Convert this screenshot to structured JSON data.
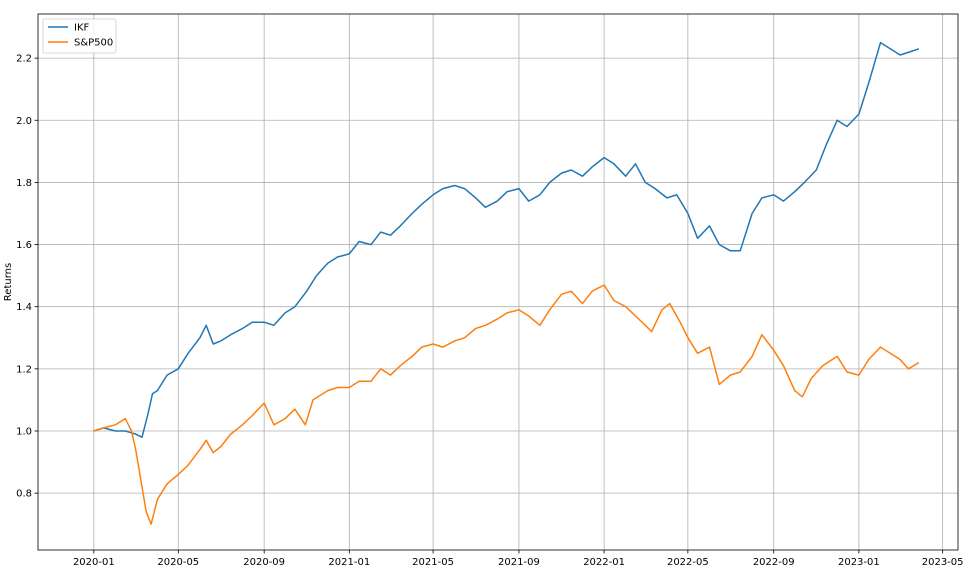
{
  "chart_data": {
    "type": "line",
    "title": "",
    "xlabel": "",
    "ylabel": "Returns",
    "grid": true,
    "legend": "top-left",
    "x_ticks": [
      "2020-01",
      "2020-05",
      "2020-09",
      "2021-01",
      "2021-05",
      "2021-09",
      "2022-01",
      "2022-05",
      "2022-09",
      "2023-01",
      "2023-05"
    ],
    "y_ticks": [
      0.8,
      1.0,
      1.2,
      1.4,
      1.6,
      1.8,
      2.0,
      2.2
    ],
    "xlim": [
      "2019-10-13",
      "2023-05-23"
    ],
    "ylim": [
      0.617,
      2.342
    ],
    "series": [
      {
        "name": "IKF",
        "color": "#1f77b4",
        "points": [
          [
            "2020-01-01",
            1.0
          ],
          [
            "2020-01-15",
            1.01
          ],
          [
            "2020-02-01",
            1.0
          ],
          [
            "2020-02-15",
            1.0
          ],
          [
            "2020-03-01",
            0.99
          ],
          [
            "2020-03-10",
            0.98
          ],
          [
            "2020-03-18",
            1.05
          ],
          [
            "2020-03-25",
            1.12
          ],
          [
            "2020-04-01",
            1.13
          ],
          [
            "2020-04-15",
            1.18
          ],
          [
            "2020-05-01",
            1.2
          ],
          [
            "2020-05-15",
            1.25
          ],
          [
            "2020-06-01",
            1.3
          ],
          [
            "2020-06-10",
            1.34
          ],
          [
            "2020-06-20",
            1.28
          ],
          [
            "2020-07-01",
            1.29
          ],
          [
            "2020-07-15",
            1.31
          ],
          [
            "2020-08-01",
            1.33
          ],
          [
            "2020-08-15",
            1.35
          ],
          [
            "2020-09-01",
            1.35
          ],
          [
            "2020-09-15",
            1.34
          ],
          [
            "2020-10-01",
            1.38
          ],
          [
            "2020-10-15",
            1.4
          ],
          [
            "2020-11-01",
            1.45
          ],
          [
            "2020-11-15",
            1.5
          ],
          [
            "2020-12-01",
            1.54
          ],
          [
            "2020-12-15",
            1.56
          ],
          [
            "2021-01-01",
            1.57
          ],
          [
            "2021-01-15",
            1.61
          ],
          [
            "2021-02-01",
            1.6
          ],
          [
            "2021-02-15",
            1.64
          ],
          [
            "2021-03-01",
            1.63
          ],
          [
            "2021-03-15",
            1.66
          ],
          [
            "2021-04-01",
            1.7
          ],
          [
            "2021-04-15",
            1.73
          ],
          [
            "2021-05-01",
            1.76
          ],
          [
            "2021-05-15",
            1.78
          ],
          [
            "2021-06-01",
            1.79
          ],
          [
            "2021-06-15",
            1.78
          ],
          [
            "2021-07-01",
            1.75
          ],
          [
            "2021-07-15",
            1.72
          ],
          [
            "2021-08-01",
            1.74
          ],
          [
            "2021-08-15",
            1.77
          ],
          [
            "2021-09-01",
            1.78
          ],
          [
            "2021-09-15",
            1.74
          ],
          [
            "2021-10-01",
            1.76
          ],
          [
            "2021-10-15",
            1.8
          ],
          [
            "2021-11-01",
            1.83
          ],
          [
            "2021-11-15",
            1.84
          ],
          [
            "2021-12-01",
            1.82
          ],
          [
            "2021-12-15",
            1.85
          ],
          [
            "2022-01-01",
            1.88
          ],
          [
            "2022-01-15",
            1.86
          ],
          [
            "2022-02-01",
            1.82
          ],
          [
            "2022-02-15",
            1.86
          ],
          [
            "2022-03-01",
            1.8
          ],
          [
            "2022-03-15",
            1.78
          ],
          [
            "2022-04-01",
            1.75
          ],
          [
            "2022-04-15",
            1.76
          ],
          [
            "2022-05-01",
            1.7
          ],
          [
            "2022-05-15",
            1.62
          ],
          [
            "2022-06-01",
            1.66
          ],
          [
            "2022-06-15",
            1.6
          ],
          [
            "2022-07-01",
            1.58
          ],
          [
            "2022-07-15",
            1.58
          ],
          [
            "2022-08-01",
            1.7
          ],
          [
            "2022-08-15",
            1.75
          ],
          [
            "2022-09-01",
            1.76
          ],
          [
            "2022-09-15",
            1.74
          ],
          [
            "2022-10-01",
            1.77
          ],
          [
            "2022-10-15",
            1.8
          ],
          [
            "2022-11-01",
            1.84
          ],
          [
            "2022-11-15",
            1.92
          ],
          [
            "2022-12-01",
            2.0
          ],
          [
            "2022-12-15",
            1.98
          ],
          [
            "2023-01-01",
            2.02
          ],
          [
            "2023-01-15",
            2.12
          ],
          [
            "2023-02-01",
            2.25
          ],
          [
            "2023-02-15",
            2.23
          ],
          [
            "2023-03-01",
            2.21
          ],
          [
            "2023-03-15",
            2.22
          ],
          [
            "2023-03-28",
            2.23
          ]
        ]
      },
      {
        "name": "S&P500",
        "color": "#ff7f0e",
        "points": [
          [
            "2020-01-01",
            1.0
          ],
          [
            "2020-01-15",
            1.01
          ],
          [
            "2020-02-01",
            1.02
          ],
          [
            "2020-02-15",
            1.04
          ],
          [
            "2020-02-24",
            1.0
          ],
          [
            "2020-03-01",
            0.94
          ],
          [
            "2020-03-10",
            0.82
          ],
          [
            "2020-03-16",
            0.74
          ],
          [
            "2020-03-23",
            0.7
          ],
          [
            "2020-04-01",
            0.78
          ],
          [
            "2020-04-15",
            0.83
          ],
          [
            "2020-05-01",
            0.86
          ],
          [
            "2020-05-15",
            0.89
          ],
          [
            "2020-06-01",
            0.94
          ],
          [
            "2020-06-10",
            0.97
          ],
          [
            "2020-06-20",
            0.93
          ],
          [
            "2020-07-01",
            0.95
          ],
          [
            "2020-07-15",
            0.99
          ],
          [
            "2020-08-01",
            1.02
          ],
          [
            "2020-08-15",
            1.05
          ],
          [
            "2020-09-01",
            1.09
          ],
          [
            "2020-09-15",
            1.02
          ],
          [
            "2020-10-01",
            1.04
          ],
          [
            "2020-10-15",
            1.07
          ],
          [
            "2020-10-30",
            1.02
          ],
          [
            "2020-11-10",
            1.1
          ],
          [
            "2020-12-01",
            1.13
          ],
          [
            "2020-12-15",
            1.14
          ],
          [
            "2021-01-01",
            1.14
          ],
          [
            "2021-01-15",
            1.16
          ],
          [
            "2021-02-01",
            1.16
          ],
          [
            "2021-02-15",
            1.2
          ],
          [
            "2021-03-01",
            1.18
          ],
          [
            "2021-03-15",
            1.21
          ],
          [
            "2021-04-01",
            1.24
          ],
          [
            "2021-04-15",
            1.27
          ],
          [
            "2021-05-01",
            1.28
          ],
          [
            "2021-05-15",
            1.27
          ],
          [
            "2021-06-01",
            1.29
          ],
          [
            "2021-06-15",
            1.3
          ],
          [
            "2021-07-01",
            1.33
          ],
          [
            "2021-07-15",
            1.34
          ],
          [
            "2021-08-01",
            1.36
          ],
          [
            "2021-08-15",
            1.38
          ],
          [
            "2021-09-01",
            1.39
          ],
          [
            "2021-09-15",
            1.37
          ],
          [
            "2021-10-01",
            1.34
          ],
          [
            "2021-10-15",
            1.39
          ],
          [
            "2021-11-01",
            1.44
          ],
          [
            "2021-11-15",
            1.45
          ],
          [
            "2021-12-01",
            1.41
          ],
          [
            "2021-12-15",
            1.45
          ],
          [
            "2022-01-01",
            1.47
          ],
          [
            "2022-01-15",
            1.42
          ],
          [
            "2022-02-01",
            1.4
          ],
          [
            "2022-02-15",
            1.37
          ],
          [
            "2022-03-01",
            1.34
          ],
          [
            "2022-03-10",
            1.32
          ],
          [
            "2022-03-25",
            1.39
          ],
          [
            "2022-04-05",
            1.41
          ],
          [
            "2022-04-20",
            1.35
          ],
          [
            "2022-05-01",
            1.3
          ],
          [
            "2022-05-15",
            1.25
          ],
          [
            "2022-06-01",
            1.27
          ],
          [
            "2022-06-15",
            1.15
          ],
          [
            "2022-07-01",
            1.18
          ],
          [
            "2022-07-15",
            1.19
          ],
          [
            "2022-08-01",
            1.24
          ],
          [
            "2022-08-15",
            1.31
          ],
          [
            "2022-09-01",
            1.26
          ],
          [
            "2022-09-15",
            1.21
          ],
          [
            "2022-10-01",
            1.13
          ],
          [
            "2022-10-12",
            1.11
          ],
          [
            "2022-10-25",
            1.17
          ],
          [
            "2022-11-10",
            1.21
          ],
          [
            "2022-12-01",
            1.24
          ],
          [
            "2022-12-15",
            1.19
          ],
          [
            "2023-01-01",
            1.18
          ],
          [
            "2023-01-15",
            1.23
          ],
          [
            "2023-02-01",
            1.27
          ],
          [
            "2023-02-15",
            1.25
          ],
          [
            "2023-03-01",
            1.23
          ],
          [
            "2023-03-13",
            1.2
          ],
          [
            "2023-03-28",
            1.22
          ]
        ]
      }
    ]
  }
}
